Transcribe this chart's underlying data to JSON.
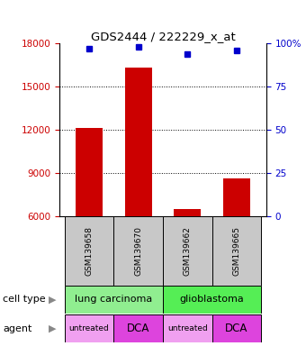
{
  "title": "GDS2444 / 222229_x_at",
  "samples": [
    "GSM139658",
    "GSM139670",
    "GSM139662",
    "GSM139665"
  ],
  "bar_values": [
    12100,
    16300,
    6500,
    8600
  ],
  "percentile_values": [
    97,
    98,
    94,
    96
  ],
  "bar_color": "#cc0000",
  "dot_color": "#0000cc",
  "ylim_left": [
    6000,
    18000
  ],
  "ylim_right": [
    0,
    100
  ],
  "yticks_left": [
    6000,
    9000,
    12000,
    15000,
    18000
  ],
  "yticks_right": [
    0,
    25,
    50,
    75,
    100
  ],
  "ytick_labels_right": [
    "0",
    "25",
    "50",
    "75",
    "100%"
  ],
  "grid_values": [
    9000,
    12000,
    15000
  ],
  "cell_type_bg_left": "#90ee90",
  "cell_type_bg_right": "#55ee55",
  "agent_bg_untreated": "#f0a0f0",
  "agent_bg_dca": "#dd44dd",
  "bar_color_left": "#cc0000",
  "tick_color_right": "#0000cc",
  "sample_bg": "#c8c8c8",
  "legend_count_color": "#cc0000",
  "legend_pct_color": "#0000cc"
}
